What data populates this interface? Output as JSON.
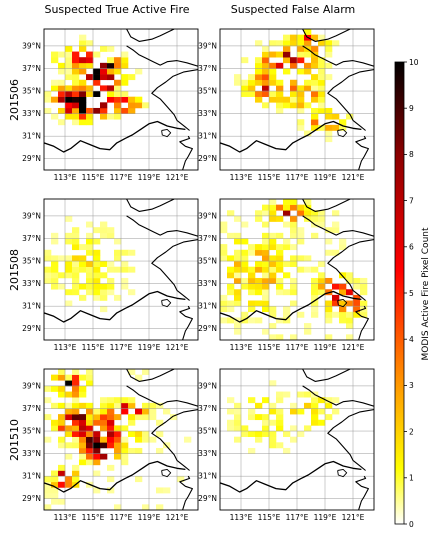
{
  "chart_data": {
    "type": "heatmap",
    "column_titles": [
      "Suspected True Active Fire",
      "Suspected False Alarm"
    ],
    "row_labels": [
      "201506",
      "201508",
      "201510"
    ],
    "x_tick_labels": [
      "113°E",
      "115°E",
      "117°E",
      "119°E",
      "121°E"
    ],
    "y_tick_labels": [
      "39°N",
      "37°N",
      "35°N",
      "33°N",
      "31°N",
      "29°N"
    ],
    "xlim": [
      111.5,
      122.5
    ],
    "ylim": [
      28,
      40.5
    ],
    "colorbar": {
      "label": "MODIS Active Fire Pixel Count",
      "ticks": [
        "0",
        "1",
        "2",
        "3",
        "4",
        "5",
        "6",
        "7",
        "8",
        "9",
        "10"
      ],
      "range": [
        0,
        10
      ],
      "colormap": [
        "#ffffff",
        "#ffff00",
        "#ff9900",
        "#ff0000",
        "#8b0000",
        "#000000"
      ]
    },
    "panels": [
      {
        "row": "201506",
        "column": "Suspected True Active Fire",
        "blobs": [
          {
            "lon": 114.6,
            "lat": 33.6,
            "sx": 1.3,
            "sy": 0.8,
            "peak": 10
          },
          {
            "lon": 115.3,
            "lat": 35.0,
            "sx": 1.0,
            "sy": 1.0,
            "peak": 9
          },
          {
            "lon": 113.3,
            "lat": 34.2,
            "sx": 0.9,
            "sy": 0.9,
            "peak": 8
          },
          {
            "lon": 115.8,
            "lat": 36.8,
            "sx": 1.2,
            "sy": 1.0,
            "peak": 7
          },
          {
            "lon": 117.2,
            "lat": 33.8,
            "sx": 0.9,
            "sy": 0.5,
            "peak": 7
          },
          {
            "lon": 114.4,
            "lat": 37.9,
            "sx": 1.4,
            "sy": 1.0,
            "peak": 4
          }
        ],
        "background": 0.2,
        "noise": 1.6
      },
      {
        "row": "201506",
        "column": "Suspected False Alarm",
        "blobs": [
          {
            "lon": 116.3,
            "lat": 37.6,
            "sx": 1.6,
            "sy": 1.0,
            "peak": 7
          },
          {
            "lon": 117.8,
            "lat": 39.3,
            "sx": 1.0,
            "sy": 0.6,
            "peak": 6
          },
          {
            "lon": 114.8,
            "lat": 35.3,
            "sx": 1.2,
            "sy": 1.1,
            "peak": 4
          },
          {
            "lon": 117.4,
            "lat": 35.0,
            "sx": 1.1,
            "sy": 1.2,
            "peak": 4
          },
          {
            "lon": 119.0,
            "lat": 32.3,
            "sx": 1.2,
            "sy": 0.8,
            "peak": 3
          }
        ],
        "background": 0.25,
        "noise": 1.5
      },
      {
        "row": "201508",
        "column": "Suspected True Active Fire",
        "blobs": [
          {
            "lon": 114.5,
            "lat": 34.5,
            "sx": 2.5,
            "sy": 2.8,
            "peak": 1.8
          }
        ],
        "background": 0.3,
        "noise": 0.9
      },
      {
        "row": "201508",
        "column": "Suspected False Alarm",
        "blobs": [
          {
            "lon": 120.6,
            "lat": 31.3,
            "sx": 0.9,
            "sy": 0.9,
            "peak": 8
          },
          {
            "lon": 119.6,
            "lat": 32.6,
            "sx": 1.0,
            "sy": 0.9,
            "peak": 5
          },
          {
            "lon": 116.4,
            "lat": 39.3,
            "sx": 1.2,
            "sy": 0.6,
            "peak": 5
          },
          {
            "lon": 114.0,
            "lat": 34.0,
            "sx": 2.0,
            "sy": 2.5,
            "peak": 2.5
          }
        ],
        "background": 0.45,
        "noise": 1.3
      },
      {
        "row": "201510",
        "column": "Suspected True Active Fire",
        "blobs": [
          {
            "lon": 115.4,
            "lat": 33.6,
            "sx": 1.1,
            "sy": 1.0,
            "peak": 9
          },
          {
            "lon": 113.8,
            "lat": 35.8,
            "sx": 1.2,
            "sy": 1.0,
            "peak": 7
          },
          {
            "lon": 113.4,
            "lat": 39.2,
            "sx": 0.8,
            "sy": 0.8,
            "peak": 8
          },
          {
            "lon": 112.8,
            "lat": 30.8,
            "sx": 0.8,
            "sy": 0.6,
            "peak": 8
          },
          {
            "lon": 117.6,
            "lat": 36.9,
            "sx": 1.0,
            "sy": 0.5,
            "peak": 6
          },
          {
            "lon": 116.5,
            "lat": 35.3,
            "sx": 1.6,
            "sy": 1.4,
            "peak": 4
          }
        ],
        "background": 0.3,
        "noise": 1.6
      },
      {
        "row": "201510",
        "column": "Suspected False Alarm",
        "blobs": [
          {
            "lon": 118.0,
            "lat": 36.8,
            "sx": 1.5,
            "sy": 1.2,
            "peak": 2.5
          },
          {
            "lon": 114.5,
            "lat": 36.0,
            "sx": 2.0,
            "sy": 2.5,
            "peak": 1.5
          }
        ],
        "background": 0.2,
        "noise": 1.0
      }
    ]
  }
}
